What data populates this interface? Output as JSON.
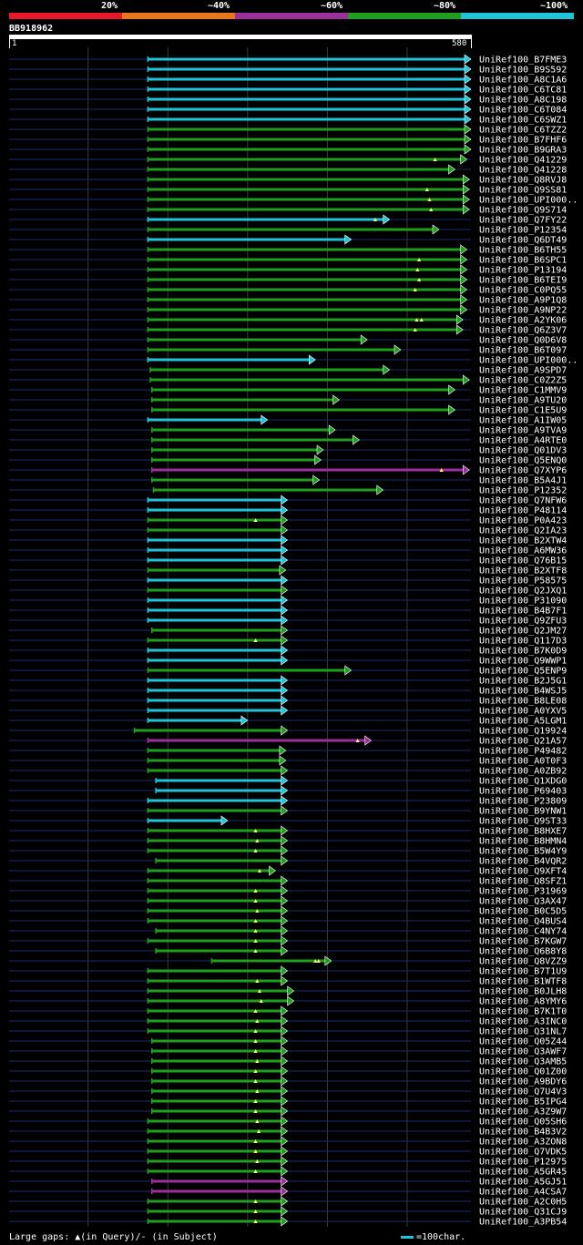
{
  "query_id": "BB918962",
  "ruler": {
    "start": "1",
    "end": "580"
  },
  "legend": [
    {
      "label": "20%",
      "color": "#e8182a"
    },
    {
      "label": "~40%",
      "color": "#e8761a"
    },
    {
      "label": "~60%",
      "color": "#9b2f9b"
    },
    {
      "label": "~80%",
      "color": "#1ea01e"
    },
    {
      "label": "~100%",
      "color": "#1fc4d8"
    }
  ],
  "footer": {
    "gaps_text": "Large gaps: ▲(in Query)/- (in Subject)",
    "scale_text": "=100char."
  },
  "chart_data": {
    "type": "alignment",
    "x_range": [
      1,
      580
    ],
    "hits": [
      {
        "label": "UniRef100_B7FME3",
        "start": 175,
        "end": 580,
        "color": "#1fc4d8",
        "gaps": []
      },
      {
        "label": "UniRef100_B9S592",
        "start": 175,
        "end": 580,
        "color": "#1fc4d8",
        "gaps": []
      },
      {
        "label": "UniRef100_A8C1A6",
        "start": 175,
        "end": 580,
        "color": "#1fc4d8",
        "gaps": []
      },
      {
        "label": "UniRef100_C6TC81",
        "start": 175,
        "end": 580,
        "color": "#1fc4d8",
        "gaps": []
      },
      {
        "label": "UniRef100_A8C198",
        "start": 175,
        "end": 580,
        "color": "#1fc4d8",
        "gaps": []
      },
      {
        "label": "UniRef100_C6T084",
        "start": 175,
        "end": 580,
        "color": "#1fc4d8",
        "gaps": []
      },
      {
        "label": "UniRef100_C6SWZ1",
        "start": 175,
        "end": 580,
        "color": "#1fc4d8",
        "gaps": []
      },
      {
        "label": "UniRef100_C6TZZ2",
        "start": 175,
        "end": 580,
        "color": "#1ea01e",
        "gaps": []
      },
      {
        "label": "UniRef100_B7FHF6",
        "start": 175,
        "end": 580,
        "color": "#1ea01e",
        "gaps": []
      },
      {
        "label": "UniRef100_B9GRA3",
        "start": 175,
        "end": 580,
        "color": "#1ea01e",
        "gaps": []
      },
      {
        "label": "UniRef100_Q41229",
        "start": 175,
        "end": 575,
        "color": "#1ea01e",
        "gaps": [
          535
        ]
      },
      {
        "label": "UniRef100_Q41228",
        "start": 175,
        "end": 560,
        "color": "#1ea01e",
        "gaps": []
      },
      {
        "label": "UniRef100_Q8RVJ8",
        "start": 175,
        "end": 578,
        "color": "#1ea01e",
        "gaps": []
      },
      {
        "label": "UniRef100_Q9SS81",
        "start": 175,
        "end": 578,
        "color": "#1ea01e",
        "gaps": [
          525
        ]
      },
      {
        "label": "UniRef100_UPI000..",
        "start": 175,
        "end": 578,
        "color": "#1ea01e",
        "gaps": [
          528
        ]
      },
      {
        "label": "UniRef100_Q9S714",
        "start": 175,
        "end": 578,
        "color": "#1ea01e",
        "gaps": [
          530
        ]
      },
      {
        "label": "UniRef100_Q7FY22",
        "start": 175,
        "end": 478,
        "color": "#1fc4d8",
        "gaps": [
          460
        ]
      },
      {
        "label": "UniRef100_P12354",
        "start": 175,
        "end": 540,
        "color": "#1ea01e",
        "gaps": []
      },
      {
        "label": "UniRef100_Q6DT49",
        "start": 175,
        "end": 430,
        "color": "#1fc4d8",
        "gaps": []
      },
      {
        "label": "UniRef100_B6TH55",
        "start": 175,
        "end": 575,
        "color": "#1ea01e",
        "gaps": []
      },
      {
        "label": "UniRef100_B6SPC1",
        "start": 175,
        "end": 575,
        "color": "#1ea01e",
        "gaps": [
          515
        ]
      },
      {
        "label": "UniRef100_P13194",
        "start": 175,
        "end": 575,
        "color": "#1ea01e",
        "gaps": [
          513
        ]
      },
      {
        "label": "UniRef100_B6TEI9",
        "start": 175,
        "end": 575,
        "color": "#1ea01e",
        "gaps": [
          515
        ]
      },
      {
        "label": "UniRef100_C0PQ55",
        "start": 175,
        "end": 575,
        "color": "#1ea01e",
        "gaps": [
          510
        ]
      },
      {
        "label": "UniRef100_A9P1Q8",
        "start": 175,
        "end": 575,
        "color": "#1ea01e",
        "gaps": []
      },
      {
        "label": "UniRef100_A9NP22",
        "start": 175,
        "end": 575,
        "color": "#1ea01e",
        "gaps": []
      },
      {
        "label": "UniRef100_A2YK06",
        "start": 175,
        "end": 570,
        "color": "#1ea01e",
        "gaps": [
          512,
          518
        ]
      },
      {
        "label": "UniRef100_Q6Z3V7",
        "start": 175,
        "end": 570,
        "color": "#1ea01e",
        "gaps": [
          510
        ]
      },
      {
        "label": "UniRef100_Q0D6V8",
        "start": 175,
        "end": 450,
        "color": "#1ea01e",
        "gaps": []
      },
      {
        "label": "UniRef100_B6T097",
        "start": 175,
        "end": 492,
        "color": "#1ea01e",
        "gaps": []
      },
      {
        "label": "UniRef100_UPI000..",
        "start": 175,
        "end": 385,
        "color": "#1fc4d8",
        "gaps": []
      },
      {
        "label": "UniRef100_A9SPD7",
        "start": 178,
        "end": 478,
        "color": "#1ea01e",
        "gaps": []
      },
      {
        "label": "UniRef100_C0Z2Z5",
        "start": 178,
        "end": 578,
        "color": "#1ea01e",
        "gaps": []
      },
      {
        "label": "UniRef100_C1MMV9",
        "start": 180,
        "end": 560,
        "color": "#1ea01e",
        "gaps": []
      },
      {
        "label": "UniRef100_A9TU20",
        "start": 180,
        "end": 415,
        "color": "#1ea01e",
        "gaps": []
      },
      {
        "label": "UniRef100_C1E5U9",
        "start": 180,
        "end": 560,
        "color": "#1ea01e",
        "gaps": []
      },
      {
        "label": "UniRef100_A1IW05",
        "start": 175,
        "end": 325,
        "color": "#1fc4d8",
        "gaps": []
      },
      {
        "label": "UniRef100_A9TVA9",
        "start": 180,
        "end": 410,
        "color": "#1ea01e",
        "gaps": []
      },
      {
        "label": "UniRef100_A4RTE0",
        "start": 180,
        "end": 440,
        "color": "#1ea01e",
        "gaps": []
      },
      {
        "label": "UniRef100_Q01DV3",
        "start": 180,
        "end": 395,
        "color": "#1ea01e",
        "gaps": []
      },
      {
        "label": "UniRef100_Q5ENQ0",
        "start": 180,
        "end": 392,
        "color": "#1ea01e",
        "gaps": []
      },
      {
        "label": "UniRef100_Q7XYP6",
        "start": 180,
        "end": 578,
        "color": "#9b2f9b",
        "gaps": [
          543
        ]
      },
      {
        "label": "UniRef100_B5A4J1",
        "start": 180,
        "end": 390,
        "color": "#1ea01e",
        "gaps": []
      },
      {
        "label": "UniRef100_P12352",
        "start": 182,
        "end": 470,
        "color": "#1ea01e",
        "gaps": []
      },
      {
        "label": "UniRef100_Q7NFW6",
        "start": 175,
        "end": 350,
        "color": "#1fc4d8",
        "gaps": []
      },
      {
        "label": "UniRef100_P48114",
        "start": 175,
        "end": 350,
        "color": "#1fc4d8",
        "gaps": []
      },
      {
        "label": "UniRef100_P0A423",
        "start": 175,
        "end": 350,
        "color": "#1ea01e",
        "gaps": [
          310
        ]
      },
      {
        "label": "UniRef100_Q2IA23",
        "start": 175,
        "end": 350,
        "color": "#1ea01e",
        "gaps": []
      },
      {
        "label": "UniRef100_B2XTW4",
        "start": 175,
        "end": 350,
        "color": "#1fc4d8",
        "gaps": []
      },
      {
        "label": "UniRef100_A6MW36",
        "start": 175,
        "end": 350,
        "color": "#1fc4d8",
        "gaps": []
      },
      {
        "label": "UniRef100_Q76B15",
        "start": 175,
        "end": 350,
        "color": "#1fc4d8",
        "gaps": []
      },
      {
        "label": "UniRef100_B2XTF8",
        "start": 175,
        "end": 348,
        "color": "#1ea01e",
        "gaps": []
      },
      {
        "label": "UniRef100_P58575",
        "start": 175,
        "end": 350,
        "color": "#1fc4d8",
        "gaps": []
      },
      {
        "label": "UniRef100_Q2JXQ1",
        "start": 175,
        "end": 350,
        "color": "#1ea01e",
        "gaps": []
      },
      {
        "label": "UniRef100_P31090",
        "start": 175,
        "end": 350,
        "color": "#1fc4d8",
        "gaps": []
      },
      {
        "label": "UniRef100_B4B7F1",
        "start": 175,
        "end": 350,
        "color": "#1fc4d8",
        "gaps": []
      },
      {
        "label": "UniRef100_Q9ZFU3",
        "start": 175,
        "end": 350,
        "color": "#1fc4d8",
        "gaps": []
      },
      {
        "label": "UniRef100_Q2JM27",
        "start": 180,
        "end": 350,
        "color": "#1ea01e",
        "gaps": []
      },
      {
        "label": "UniRef100_Q117D3",
        "start": 175,
        "end": 350,
        "color": "#1ea01e",
        "gaps": [
          310
        ]
      },
      {
        "label": "UniRef100_B7K0D9",
        "start": 175,
        "end": 350,
        "color": "#1fc4d8",
        "gaps": []
      },
      {
        "label": "UniRef100_Q9WWP1",
        "start": 175,
        "end": 350,
        "color": "#1fc4d8",
        "gaps": []
      },
      {
        "label": "UniRef100_Q5ENP9",
        "start": 175,
        "end": 430,
        "color": "#1ea01e",
        "gaps": []
      },
      {
        "label": "UniRef100_B2J5G1",
        "start": 175,
        "end": 350,
        "color": "#1fc4d8",
        "gaps": []
      },
      {
        "label": "UniRef100_B4WSJ5",
        "start": 175,
        "end": 350,
        "color": "#1fc4d8",
        "gaps": []
      },
      {
        "label": "UniRef100_B8LE08",
        "start": 175,
        "end": 350,
        "color": "#1fc4d8",
        "gaps": []
      },
      {
        "label": "UniRef100_A0YXV5",
        "start": 175,
        "end": 350,
        "color": "#1fc4d8",
        "gaps": []
      },
      {
        "label": "UniRef100_A5LGM1",
        "start": 175,
        "end": 300,
        "color": "#1fc4d8",
        "gaps": []
      },
      {
        "label": "UniRef100_Q19924",
        "start": 158,
        "end": 350,
        "color": "#1ea01e",
        "gaps": []
      },
      {
        "label": "UniRef100_Q21A57",
        "start": 175,
        "end": 455,
        "color": "#9b2f9b",
        "gaps": [
          438
        ]
      },
      {
        "label": "UniRef100_P49482",
        "start": 175,
        "end": 348,
        "color": "#1ea01e",
        "gaps": []
      },
      {
        "label": "UniRef100_A0T0F3",
        "start": 175,
        "end": 348,
        "color": "#1ea01e",
        "gaps": []
      },
      {
        "label": "UniRef100_A0ZB92",
        "start": 175,
        "end": 350,
        "color": "#1ea01e",
        "gaps": []
      },
      {
        "label": "UniRef100_Q1XDG0",
        "start": 185,
        "end": 350,
        "color": "#1fc4d8",
        "gaps": []
      },
      {
        "label": "UniRef100_P69403",
        "start": 185,
        "end": 350,
        "color": "#1fc4d8",
        "gaps": []
      },
      {
        "label": "UniRef100_P23809",
        "start": 175,
        "end": 350,
        "color": "#1fc4d8",
        "gaps": []
      },
      {
        "label": "UniRef100_B9YNW1",
        "start": 175,
        "end": 350,
        "color": "#1ea01e",
        "gaps": []
      },
      {
        "label": "UniRef100_Q9ST33",
        "start": 175,
        "end": 275,
        "color": "#1fc4d8",
        "gaps": []
      },
      {
        "label": "UniRef100_B8HXE7",
        "start": 175,
        "end": 350,
        "color": "#1ea01e",
        "gaps": [
          310
        ]
      },
      {
        "label": "UniRef100_B8HMN4",
        "start": 175,
        "end": 350,
        "color": "#1ea01e",
        "gaps": [
          312
        ]
      },
      {
        "label": "UniRef100_B5W4Y9",
        "start": 175,
        "end": 350,
        "color": "#1ea01e",
        "gaps": [
          310
        ]
      },
      {
        "label": "UniRef100_B4VQR2",
        "start": 185,
        "end": 350,
        "color": "#1ea01e",
        "gaps": []
      },
      {
        "label": "UniRef100_Q9XFT4",
        "start": 175,
        "end": 335,
        "color": "#1ea01e",
        "gaps": [
          315
        ]
      },
      {
        "label": "UniRef100_Q8SFZ1",
        "start": 175,
        "end": 350,
        "color": "#1ea01e",
        "gaps": []
      },
      {
        "label": "UniRef100_P31969",
        "start": 175,
        "end": 350,
        "color": "#1ea01e",
        "gaps": [
          310
        ]
      },
      {
        "label": "UniRef100_Q3AX47",
        "start": 175,
        "end": 350,
        "color": "#1ea01e",
        "gaps": [
          310
        ]
      },
      {
        "label": "UniRef100_B0C5D5",
        "start": 175,
        "end": 350,
        "color": "#1ea01e",
        "gaps": [
          312
        ]
      },
      {
        "label": "UniRef100_Q4BUS4",
        "start": 175,
        "end": 350,
        "color": "#1ea01e",
        "gaps": [
          310
        ]
      },
      {
        "label": "UniRef100_C4NY74",
        "start": 185,
        "end": 350,
        "color": "#1ea01e",
        "gaps": [
          310
        ]
      },
      {
        "label": "UniRef100_B7KGW7",
        "start": 175,
        "end": 350,
        "color": "#1ea01e",
        "gaps": [
          310
        ]
      },
      {
        "label": "UniRef100_Q6B8Y8",
        "start": 185,
        "end": 350,
        "color": "#1ea01e",
        "gaps": [
          310
        ]
      },
      {
        "label": "UniRef100_Q8VZZ9",
        "start": 255,
        "end": 405,
        "color": "#1ea01e",
        "gaps": [
          385,
          389
        ]
      },
      {
        "label": "UniRef100_B7T1U9",
        "start": 175,
        "end": 350,
        "color": "#1ea01e",
        "gaps": []
      },
      {
        "label": "UniRef100_B1WTF8",
        "start": 175,
        "end": 350,
        "color": "#1ea01e",
        "gaps": [
          312
        ]
      },
      {
        "label": "UniRef100_B0JLH8",
        "start": 175,
        "end": 358,
        "color": "#1ea01e",
        "gaps": [
          315
        ]
      },
      {
        "label": "UniRef100_A8YMY6",
        "start": 175,
        "end": 358,
        "color": "#1ea01e",
        "gaps": [
          317
        ]
      },
      {
        "label": "UniRef100_B7K1T0",
        "start": 175,
        "end": 350,
        "color": "#1ea01e",
        "gaps": [
          310
        ]
      },
      {
        "label": "UniRef100_A3INC0",
        "start": 175,
        "end": 350,
        "color": "#1ea01e",
        "gaps": [
          312
        ]
      },
      {
        "label": "UniRef100_Q31NL7",
        "start": 175,
        "end": 350,
        "color": "#1ea01e",
        "gaps": [
          310
        ]
      },
      {
        "label": "UniRef100_Q05Z44",
        "start": 180,
        "end": 350,
        "color": "#1ea01e",
        "gaps": [
          310
        ]
      },
      {
        "label": "UniRef100_Q3AWF7",
        "start": 180,
        "end": 350,
        "color": "#1ea01e",
        "gaps": [
          310
        ]
      },
      {
        "label": "UniRef100_Q3AMB5",
        "start": 180,
        "end": 350,
        "color": "#1ea01e",
        "gaps": [
          312
        ]
      },
      {
        "label": "UniRef100_Q01Z00",
        "start": 180,
        "end": 350,
        "color": "#1ea01e",
        "gaps": [
          310
        ]
      },
      {
        "label": "UniRef100_A9BDY6",
        "start": 180,
        "end": 350,
        "color": "#1ea01e",
        "gaps": [
          310
        ]
      },
      {
        "label": "UniRef100_Q7U4V3",
        "start": 180,
        "end": 350,
        "color": "#1ea01e",
        "gaps": [
          312
        ]
      },
      {
        "label": "UniRef100_B5IPG4",
        "start": 180,
        "end": 350,
        "color": "#1ea01e",
        "gaps": [
          310
        ]
      },
      {
        "label": "UniRef100_A3Z9W7",
        "start": 180,
        "end": 350,
        "color": "#1ea01e",
        "gaps": [
          310
        ]
      },
      {
        "label": "UniRef100_Q05SH6",
        "start": 175,
        "end": 350,
        "color": "#1ea01e",
        "gaps": [
          312
        ]
      },
      {
        "label": "UniRef100_B4B3V2",
        "start": 175,
        "end": 350,
        "color": "#1ea01e",
        "gaps": [
          314
        ]
      },
      {
        "label": "UniRef100_A3ZON8",
        "start": 175,
        "end": 350,
        "color": "#1ea01e",
        "gaps": [
          310
        ]
      },
      {
        "label": "UniRef100_Q7VDK5",
        "start": 175,
        "end": 350,
        "color": "#1ea01e",
        "gaps": [
          310
        ]
      },
      {
        "label": "UniRef100_P12975",
        "start": 175,
        "end": 350,
        "color": "#1ea01e",
        "gaps": [
          312
        ]
      },
      {
        "label": "UniRef100_A5GR45",
        "start": 175,
        "end": 350,
        "color": "#1ea01e",
        "gaps": [
          310
        ]
      },
      {
        "label": "UniRef100_A5GJ51",
        "start": 180,
        "end": 350,
        "color": "#9b2f9b",
        "gaps": []
      },
      {
        "label": "UniRef100_A4CSA7",
        "start": 180,
        "end": 350,
        "color": "#9b2f9b",
        "gaps": []
      },
      {
        "label": "UniRef100_A2C0H5",
        "start": 175,
        "end": 350,
        "color": "#1ea01e",
        "gaps": [
          310
        ]
      },
      {
        "label": "UniRef100_Q31CJ9",
        "start": 175,
        "end": 350,
        "color": "#1ea01e",
        "gaps": [
          310
        ]
      },
      {
        "label": "UniRef100_A3PB54",
        "start": 175,
        "end": 350,
        "color": "#1ea01e",
        "gaps": [
          310
        ]
      }
    ]
  }
}
